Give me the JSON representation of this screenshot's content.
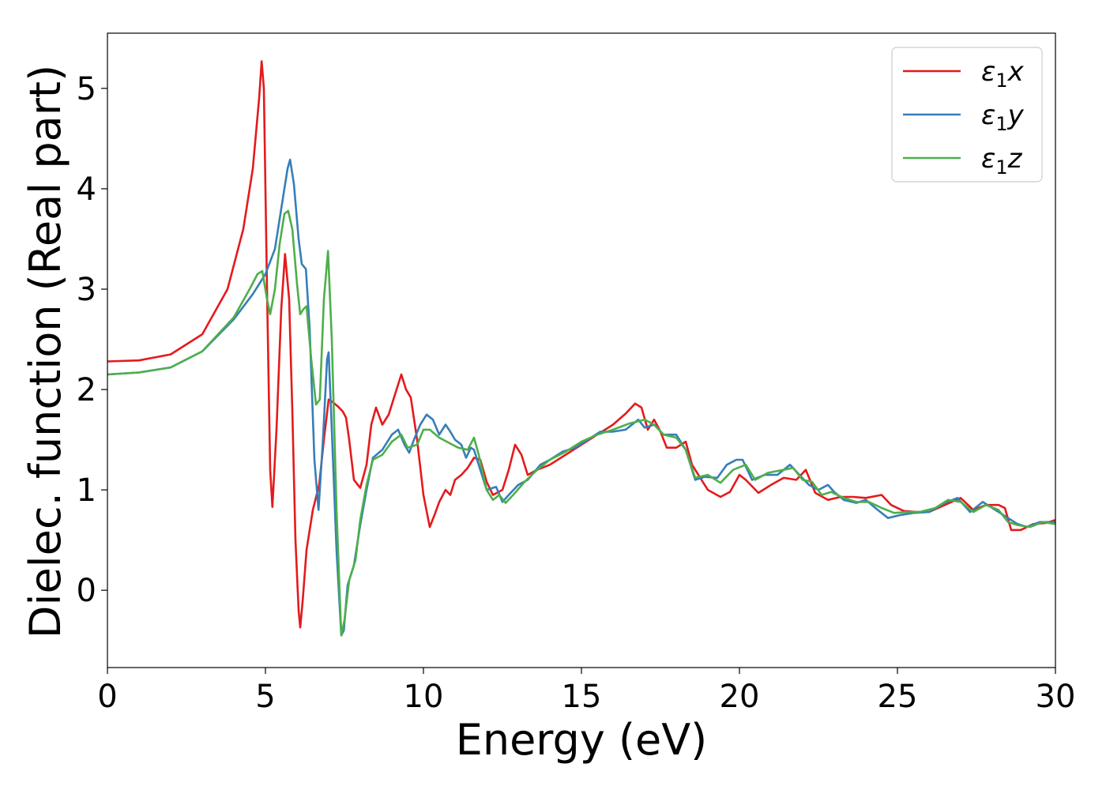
{
  "chart_data": {
    "type": "line",
    "xlabel": "Energy (eV)",
    "ylabel": "Dielec. function (Real part)",
    "xlim": [
      0,
      30
    ],
    "ylim": [
      -0.77,
      5.55
    ],
    "xticks": [
      0,
      5,
      10,
      15,
      20,
      25,
      30
    ],
    "yticks": [
      0,
      1,
      2,
      3,
      4,
      5
    ],
    "grid": false,
    "legend_position": "top-right",
    "series": [
      {
        "name": "ε₁x",
        "legend_base": "ε",
        "legend_sub": "1",
        "legend_suffix": "x",
        "color": "#e41a1c",
        "points": [
          [
            0,
            2.28
          ],
          [
            1,
            2.29
          ],
          [
            2,
            2.35
          ],
          [
            3,
            2.55
          ],
          [
            3.8,
            3.0
          ],
          [
            4.3,
            3.6
          ],
          [
            4.6,
            4.2
          ],
          [
            4.8,
            4.9
          ],
          [
            4.88,
            5.27
          ],
          [
            4.95,
            5.0
          ],
          [
            5.05,
            3.0
          ],
          [
            5.15,
            1.2
          ],
          [
            5.22,
            0.83
          ],
          [
            5.35,
            1.6
          ],
          [
            5.5,
            2.8
          ],
          [
            5.62,
            3.35
          ],
          [
            5.75,
            2.9
          ],
          [
            5.85,
            1.8
          ],
          [
            5.95,
            0.5
          ],
          [
            6.05,
            -0.2
          ],
          [
            6.1,
            -0.37
          ],
          [
            6.18,
            -0.1
          ],
          [
            6.3,
            0.4
          ],
          [
            6.5,
            0.8
          ],
          [
            6.7,
            1.05
          ],
          [
            6.85,
            1.5
          ],
          [
            7.0,
            1.9
          ],
          [
            7.15,
            1.87
          ],
          [
            7.3,
            1.83
          ],
          [
            7.45,
            1.78
          ],
          [
            7.55,
            1.72
          ],
          [
            7.65,
            1.5
          ],
          [
            7.8,
            1.1
          ],
          [
            8.0,
            1.02
          ],
          [
            8.2,
            1.25
          ],
          [
            8.35,
            1.65
          ],
          [
            8.5,
            1.82
          ],
          [
            8.7,
            1.65
          ],
          [
            8.9,
            1.75
          ],
          [
            9.1,
            1.95
          ],
          [
            9.3,
            2.15
          ],
          [
            9.45,
            2.0
          ],
          [
            9.6,
            1.92
          ],
          [
            9.8,
            1.5
          ],
          [
            10.0,
            0.95
          ],
          [
            10.2,
            0.63
          ],
          [
            10.35,
            0.75
          ],
          [
            10.5,
            0.88
          ],
          [
            10.7,
            1.0
          ],
          [
            10.85,
            0.95
          ],
          [
            11.0,
            1.1
          ],
          [
            11.2,
            1.15
          ],
          [
            11.4,
            1.22
          ],
          [
            11.6,
            1.32
          ],
          [
            11.8,
            1.3
          ],
          [
            12.0,
            1.08
          ],
          [
            12.2,
            0.95
          ],
          [
            12.5,
            1.0
          ],
          [
            12.7,
            1.2
          ],
          [
            12.9,
            1.45
          ],
          [
            13.1,
            1.35
          ],
          [
            13.3,
            1.15
          ],
          [
            13.6,
            1.2
          ],
          [
            14.0,
            1.25
          ],
          [
            14.5,
            1.35
          ],
          [
            15.0,
            1.45
          ],
          [
            15.5,
            1.55
          ],
          [
            16.0,
            1.65
          ],
          [
            16.4,
            1.76
          ],
          [
            16.7,
            1.86
          ],
          [
            16.9,
            1.82
          ],
          [
            17.1,
            1.6
          ],
          [
            17.3,
            1.7
          ],
          [
            17.5,
            1.58
          ],
          [
            17.7,
            1.42
          ],
          [
            18.0,
            1.42
          ],
          [
            18.3,
            1.48
          ],
          [
            18.5,
            1.25
          ],
          [
            18.7,
            1.15
          ],
          [
            19.0,
            1.0
          ],
          [
            19.4,
            0.93
          ],
          [
            19.7,
            0.98
          ],
          [
            20.0,
            1.15
          ],
          [
            20.2,
            1.1
          ],
          [
            20.6,
            0.97
          ],
          [
            21.0,
            1.05
          ],
          [
            21.4,
            1.12
          ],
          [
            21.8,
            1.1
          ],
          [
            22.1,
            1.2
          ],
          [
            22.4,
            0.97
          ],
          [
            22.8,
            0.9
          ],
          [
            23.2,
            0.93
          ],
          [
            23.6,
            0.93
          ],
          [
            24.0,
            0.92
          ],
          [
            24.5,
            0.95
          ],
          [
            24.8,
            0.85
          ],
          [
            25.2,
            0.79
          ],
          [
            25.6,
            0.78
          ],
          [
            26.0,
            0.78
          ],
          [
            26.5,
            0.85
          ],
          [
            27.0,
            0.92
          ],
          [
            27.4,
            0.8
          ],
          [
            27.8,
            0.85
          ],
          [
            28.2,
            0.85
          ],
          [
            28.4,
            0.82
          ],
          [
            28.6,
            0.6
          ],
          [
            28.9,
            0.6
          ],
          [
            29.3,
            0.66
          ],
          [
            29.7,
            0.67
          ],
          [
            30.0,
            0.7
          ]
        ]
      },
      {
        "name": "ε₁y",
        "legend_base": "ε",
        "legend_sub": "1",
        "legend_suffix": "y",
        "color": "#377eb8",
        "points": [
          [
            0,
            2.15
          ],
          [
            1,
            2.17
          ],
          [
            2,
            2.22
          ],
          [
            3,
            2.38
          ],
          [
            4,
            2.7
          ],
          [
            4.6,
            2.95
          ],
          [
            5.0,
            3.15
          ],
          [
            5.3,
            3.4
          ],
          [
            5.5,
            3.8
          ],
          [
            5.7,
            4.2
          ],
          [
            5.78,
            4.29
          ],
          [
            5.9,
            4.05
          ],
          [
            6.05,
            3.5
          ],
          [
            6.15,
            3.25
          ],
          [
            6.28,
            3.2
          ],
          [
            6.4,
            2.6
          ],
          [
            6.55,
            1.3
          ],
          [
            6.68,
            0.8
          ],
          [
            6.82,
            1.5
          ],
          [
            6.95,
            2.3
          ],
          [
            7.0,
            2.37
          ],
          [
            7.1,
            1.6
          ],
          [
            7.25,
            0.4
          ],
          [
            7.4,
            -0.45
          ],
          [
            7.48,
            -0.4
          ],
          [
            7.6,
            0.05
          ],
          [
            7.8,
            0.25
          ],
          [
            8.0,
            0.65
          ],
          [
            8.2,
            1.0
          ],
          [
            8.4,
            1.32
          ],
          [
            8.7,
            1.4
          ],
          [
            9.0,
            1.55
          ],
          [
            9.2,
            1.6
          ],
          [
            9.4,
            1.45
          ],
          [
            9.55,
            1.37
          ],
          [
            9.7,
            1.5
          ],
          [
            9.9,
            1.65
          ],
          [
            10.1,
            1.75
          ],
          [
            10.3,
            1.7
          ],
          [
            10.5,
            1.55
          ],
          [
            10.7,
            1.65
          ],
          [
            10.85,
            1.58
          ],
          [
            11.0,
            1.5
          ],
          [
            11.2,
            1.45
          ],
          [
            11.35,
            1.32
          ],
          [
            11.5,
            1.42
          ],
          [
            11.6,
            1.4
          ],
          [
            11.8,
            1.2
          ],
          [
            12.0,
            1.0
          ],
          [
            12.3,
            1.03
          ],
          [
            12.5,
            0.88
          ],
          [
            12.7,
            0.95
          ],
          [
            13.0,
            1.05
          ],
          [
            13.3,
            1.1
          ],
          [
            13.7,
            1.25
          ],
          [
            14.0,
            1.3
          ],
          [
            14.4,
            1.38
          ],
          [
            14.8,
            1.42
          ],
          [
            15.2,
            1.5
          ],
          [
            15.6,
            1.58
          ],
          [
            16.0,
            1.58
          ],
          [
            16.4,
            1.6
          ],
          [
            16.8,
            1.7
          ],
          [
            17.0,
            1.62
          ],
          [
            17.3,
            1.65
          ],
          [
            17.6,
            1.55
          ],
          [
            18.0,
            1.55
          ],
          [
            18.3,
            1.4
          ],
          [
            18.6,
            1.1
          ],
          [
            18.9,
            1.13
          ],
          [
            19.3,
            1.12
          ],
          [
            19.6,
            1.25
          ],
          [
            19.9,
            1.3
          ],
          [
            20.1,
            1.3
          ],
          [
            20.4,
            1.1
          ],
          [
            20.8,
            1.15
          ],
          [
            21.2,
            1.15
          ],
          [
            21.6,
            1.25
          ],
          [
            21.9,
            1.15
          ],
          [
            22.2,
            1.05
          ],
          [
            22.5,
            1.0
          ],
          [
            22.8,
            1.05
          ],
          [
            23.0,
            0.98
          ],
          [
            23.3,
            0.9
          ],
          [
            23.7,
            0.87
          ],
          [
            24.0,
            0.9
          ],
          [
            24.3,
            0.82
          ],
          [
            24.7,
            0.72
          ],
          [
            25.1,
            0.75
          ],
          [
            25.5,
            0.77
          ],
          [
            26.0,
            0.78
          ],
          [
            26.5,
            0.87
          ],
          [
            26.9,
            0.92
          ],
          [
            27.3,
            0.78
          ],
          [
            27.7,
            0.88
          ],
          [
            28.1,
            0.8
          ],
          [
            28.5,
            0.72
          ],
          [
            28.8,
            0.66
          ],
          [
            29.1,
            0.63
          ],
          [
            29.5,
            0.68
          ],
          [
            30.0,
            0.68
          ]
        ]
      },
      {
        "name": "ε₁z",
        "legend_base": "ε",
        "legend_sub": "1",
        "legend_suffix": "z",
        "color": "#4daf4a",
        "points": [
          [
            0,
            2.15
          ],
          [
            1,
            2.17
          ],
          [
            2,
            2.22
          ],
          [
            3,
            2.38
          ],
          [
            4,
            2.72
          ],
          [
            4.5,
            3.0
          ],
          [
            4.75,
            3.15
          ],
          [
            4.9,
            3.18
          ],
          [
            5.05,
            2.9
          ],
          [
            5.15,
            2.75
          ],
          [
            5.3,
            3.0
          ],
          [
            5.45,
            3.45
          ],
          [
            5.6,
            3.75
          ],
          [
            5.72,
            3.78
          ],
          [
            5.85,
            3.6
          ],
          [
            6.0,
            3.05
          ],
          [
            6.1,
            2.75
          ],
          [
            6.2,
            2.8
          ],
          [
            6.3,
            2.83
          ],
          [
            6.45,
            2.3
          ],
          [
            6.6,
            1.85
          ],
          [
            6.72,
            1.9
          ],
          [
            6.85,
            2.9
          ],
          [
            6.98,
            3.38
          ],
          [
            7.1,
            2.5
          ],
          [
            7.25,
            0.8
          ],
          [
            7.4,
            -0.45
          ],
          [
            7.5,
            -0.3
          ],
          [
            7.65,
            0.1
          ],
          [
            7.85,
            0.3
          ],
          [
            8.0,
            0.7
          ],
          [
            8.2,
            1.05
          ],
          [
            8.4,
            1.3
          ],
          [
            8.7,
            1.35
          ],
          [
            9.0,
            1.48
          ],
          [
            9.3,
            1.55
          ],
          [
            9.5,
            1.42
          ],
          [
            9.8,
            1.45
          ],
          [
            10.0,
            1.6
          ],
          [
            10.2,
            1.6
          ],
          [
            10.5,
            1.52
          ],
          [
            10.8,
            1.47
          ],
          [
            11.1,
            1.42
          ],
          [
            11.4,
            1.4
          ],
          [
            11.6,
            1.52
          ],
          [
            11.75,
            1.35
          ],
          [
            12.0,
            1.0
          ],
          [
            12.2,
            0.9
          ],
          [
            12.4,
            0.95
          ],
          [
            12.6,
            0.87
          ],
          [
            12.9,
            0.97
          ],
          [
            13.2,
            1.08
          ],
          [
            13.6,
            1.2
          ],
          [
            14.0,
            1.3
          ],
          [
            14.5,
            1.38
          ],
          [
            15.0,
            1.48
          ],
          [
            15.5,
            1.55
          ],
          [
            16.0,
            1.6
          ],
          [
            16.5,
            1.66
          ],
          [
            17.0,
            1.7
          ],
          [
            17.3,
            1.65
          ],
          [
            17.6,
            1.55
          ],
          [
            18.0,
            1.52
          ],
          [
            18.3,
            1.4
          ],
          [
            18.6,
            1.12
          ],
          [
            19.0,
            1.15
          ],
          [
            19.4,
            1.07
          ],
          [
            19.8,
            1.2
          ],
          [
            20.2,
            1.25
          ],
          [
            20.5,
            1.1
          ],
          [
            20.9,
            1.17
          ],
          [
            21.4,
            1.2
          ],
          [
            21.7,
            1.22
          ],
          [
            22.0,
            1.1
          ],
          [
            22.3,
            1.08
          ],
          [
            22.6,
            0.95
          ],
          [
            22.9,
            0.98
          ],
          [
            23.3,
            0.92
          ],
          [
            23.7,
            0.88
          ],
          [
            24.1,
            0.88
          ],
          [
            24.5,
            0.82
          ],
          [
            24.9,
            0.77
          ],
          [
            25.3,
            0.78
          ],
          [
            25.7,
            0.78
          ],
          [
            26.2,
            0.82
          ],
          [
            26.6,
            0.9
          ],
          [
            27.0,
            0.88
          ],
          [
            27.4,
            0.78
          ],
          [
            27.8,
            0.85
          ],
          [
            28.2,
            0.8
          ],
          [
            28.5,
            0.68
          ],
          [
            28.8,
            0.65
          ],
          [
            29.2,
            0.63
          ],
          [
            29.6,
            0.68
          ],
          [
            30.0,
            0.66
          ]
        ]
      }
    ]
  }
}
